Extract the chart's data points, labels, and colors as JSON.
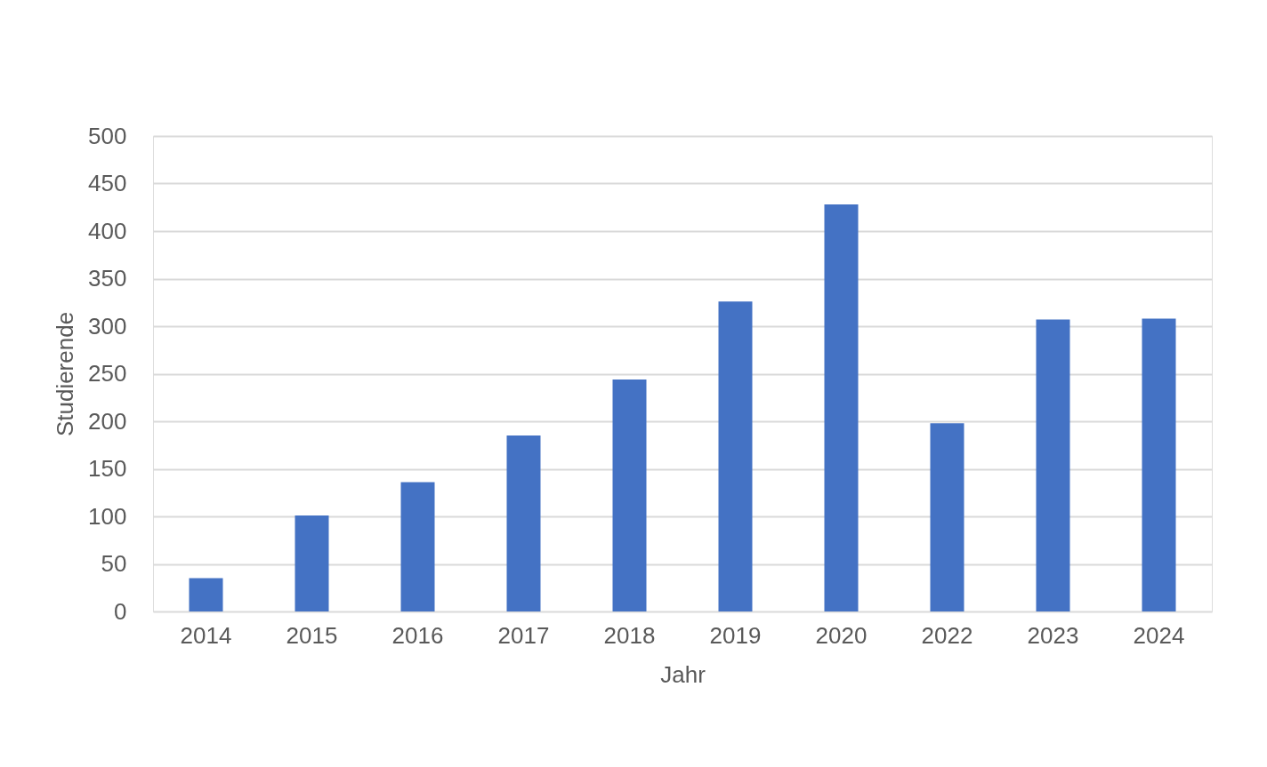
{
  "chart_data": {
    "type": "bar",
    "xlabel": "Jahr",
    "ylabel": "Studierende",
    "categories": [
      "2014",
      "2015",
      "2016",
      "2017",
      "2018",
      "2019",
      "2020",
      "2022",
      "2023",
      "2024"
    ],
    "values": [
      35,
      101,
      136,
      185,
      244,
      326,
      428,
      198,
      307,
      308
    ],
    "color": "#4472c4",
    "ylim": [
      0,
      500
    ],
    "yticks": [
      0,
      50,
      100,
      150,
      200,
      250,
      300,
      350,
      400,
      450,
      500
    ],
    "grid": "y"
  }
}
